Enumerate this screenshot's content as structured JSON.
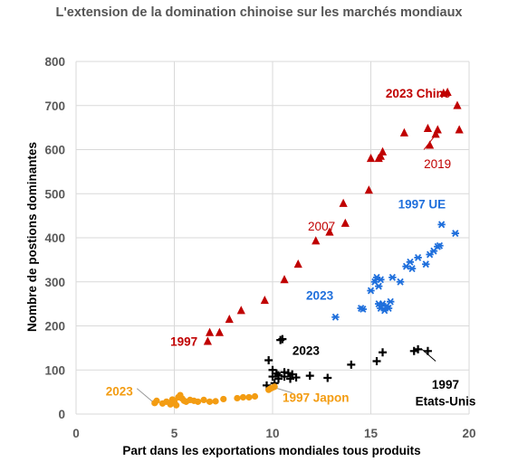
{
  "chart_data": {
    "type": "scatter",
    "title": "L'extension de la domination chinoise sur les marchés mondiaux",
    "xlabel": "Part dans les exportations mondiales tous produits",
    "ylabel": "Nombre de postions dominantes",
    "xlim": [
      0,
      20
    ],
    "ylim": [
      0,
      800
    ],
    "xticks": [
      0,
      5,
      10,
      15,
      20
    ],
    "yticks": [
      0,
      100,
      200,
      300,
      400,
      500,
      600,
      700,
      800
    ],
    "grid": true,
    "series": [
      {
        "key": "chine",
        "color": "#c00000",
        "marker": "triangle",
        "points": [
          [
            6.7,
            165
          ],
          [
            6.8,
            185
          ],
          [
            7.3,
            185
          ],
          [
            7.8,
            215
          ],
          [
            8.4,
            235
          ],
          [
            9.6,
            258
          ],
          [
            10.6,
            305
          ],
          [
            11.3,
            340
          ],
          [
            12.2,
            393
          ],
          [
            12.9,
            413
          ],
          [
            13.6,
            478
          ],
          [
            13.7,
            433
          ],
          [
            14.9,
            508
          ],
          [
            15.0,
            580
          ],
          [
            15.4,
            580
          ],
          [
            15.5,
            585
          ],
          [
            15.6,
            595
          ],
          [
            16.7,
            638
          ],
          [
            17.9,
            648
          ],
          [
            18.0,
            610
          ],
          [
            18.3,
            635
          ],
          [
            18.4,
            645
          ],
          [
            18.7,
            728
          ],
          [
            18.9,
            730
          ],
          [
            19.4,
            700
          ],
          [
            19.5,
            645
          ]
        ]
      },
      {
        "key": "ue",
        "color": "#1f6fdc",
        "marker": "asterisk",
        "points": [
          [
            13.2,
            220
          ],
          [
            14.5,
            240
          ],
          [
            14.6,
            238
          ],
          [
            15.0,
            280
          ],
          [
            15.2,
            300
          ],
          [
            15.3,
            310
          ],
          [
            15.4,
            250
          ],
          [
            15.4,
            290
          ],
          [
            15.5,
            305
          ],
          [
            15.5,
            240
          ],
          [
            15.6,
            250
          ],
          [
            15.7,
            235
          ],
          [
            15.8,
            245
          ],
          [
            15.9,
            240
          ],
          [
            16.0,
            255
          ],
          [
            16.1,
            310
          ],
          [
            16.5,
            300
          ],
          [
            16.8,
            335
          ],
          [
            17.0,
            345
          ],
          [
            17.1,
            330
          ],
          [
            17.4,
            355
          ],
          [
            17.8,
            340
          ],
          [
            18.0,
            362
          ],
          [
            18.2,
            370
          ],
          [
            18.4,
            380
          ],
          [
            18.5,
            382
          ],
          [
            18.6,
            430
          ],
          [
            19.3,
            410
          ]
        ]
      },
      {
        "key": "usa",
        "color": "#000000",
        "marker": "plus",
        "points": [
          [
            9.7,
            65
          ],
          [
            9.8,
            122
          ],
          [
            10.0,
            100
          ],
          [
            10.0,
            85
          ],
          [
            10.1,
            70
          ],
          [
            10.2,
            92
          ],
          [
            10.3,
            88
          ],
          [
            10.3,
            80
          ],
          [
            10.4,
            168
          ],
          [
            10.5,
            170
          ],
          [
            10.6,
            85
          ],
          [
            10.6,
            95
          ],
          [
            10.8,
            93
          ],
          [
            10.9,
            80
          ],
          [
            11.0,
            90
          ],
          [
            11.2,
            83
          ],
          [
            11.9,
            87
          ],
          [
            12.8,
            82
          ],
          [
            14.0,
            112
          ],
          [
            15.3,
            120
          ],
          [
            15.6,
            140
          ],
          [
            17.2,
            143
          ],
          [
            17.4,
            147
          ],
          [
            17.9,
            143
          ]
        ]
      },
      {
        "key": "japon",
        "color": "#f39c12",
        "marker": "circle",
        "points": [
          [
            4.0,
            25
          ],
          [
            4.1,
            30
          ],
          [
            4.4,
            24
          ],
          [
            4.6,
            28
          ],
          [
            4.8,
            22
          ],
          [
            4.9,
            33
          ],
          [
            5.0,
            28
          ],
          [
            5.1,
            20
          ],
          [
            5.2,
            38
          ],
          [
            5.3,
            43
          ],
          [
            5.4,
            35
          ],
          [
            5.5,
            30
          ],
          [
            5.6,
            28
          ],
          [
            5.8,
            32
          ],
          [
            6.0,
            30
          ],
          [
            6.2,
            28
          ],
          [
            6.5,
            32
          ],
          [
            6.8,
            28
          ],
          [
            7.1,
            29
          ],
          [
            7.5,
            34
          ],
          [
            8.2,
            36
          ],
          [
            8.5,
            38
          ],
          [
            8.8,
            38
          ],
          [
            9.1,
            40
          ],
          [
            9.8,
            55
          ],
          [
            9.9,
            58
          ],
          [
            10.0,
            60
          ],
          [
            10.1,
            62
          ]
        ]
      }
    ],
    "annotations": [
      {
        "text": "2023 Chine",
        "color": "#c00000",
        "bold": true,
        "x": 17.4,
        "y": 728,
        "anchor": "middle"
      },
      {
        "text": "2019",
        "color": "#c00000",
        "bold": false,
        "x": 17.7,
        "y": 568,
        "anchor": "start"
      },
      {
        "text": "2007",
        "color": "#c00000",
        "bold": false,
        "x": 11.8,
        "y": 427,
        "anchor": "start"
      },
      {
        "text": "1997",
        "color": "#c00000",
        "bold": true,
        "x": 4.8,
        "y": 165,
        "anchor": "start"
      },
      {
        "text": "1997 UE",
        "color": "#1f6fdc",
        "bold": true,
        "x": 17.6,
        "y": 477,
        "anchor": "middle"
      },
      {
        "text": "2023",
        "color": "#1f6fdc",
        "bold": true,
        "x": 12.4,
        "y": 270,
        "anchor": "middle"
      },
      {
        "text": "2023",
        "color": "#000000",
        "bold": true,
        "x": 11.7,
        "y": 145,
        "anchor": "middle"
      },
      {
        "text": "1997",
        "color": "#000000",
        "bold": true,
        "x": 18.8,
        "y": 68,
        "anchor": "middle"
      },
      {
        "text": "Etats-Unis",
        "color": "#000000",
        "bold": true,
        "x": 18.8,
        "y": 30,
        "anchor": "middle"
      },
      {
        "text": "2023",
        "color": "#f39c12",
        "bold": true,
        "x": 2.2,
        "y": 52,
        "anchor": "middle"
      },
      {
        "text": "1997 Japon",
        "color": "#f39c12",
        "bold": true,
        "x": 12.2,
        "y": 38,
        "anchor": "middle"
      }
    ],
    "leader_lines": [
      {
        "color": "#c00000",
        "from": [
          17.7,
          600
        ],
        "to": [
          18.2,
          628
        ]
      },
      {
        "color": "#000000",
        "from": [
          18.3,
          120
        ],
        "to": [
          17.6,
          147
        ]
      },
      {
        "color": "#999999",
        "from": [
          3.1,
          58
        ],
        "to": [
          4.0,
          24
        ]
      },
      {
        "color": "#999999",
        "from": [
          11.0,
          48
        ],
        "to": [
          10.1,
          60
        ]
      }
    ]
  }
}
